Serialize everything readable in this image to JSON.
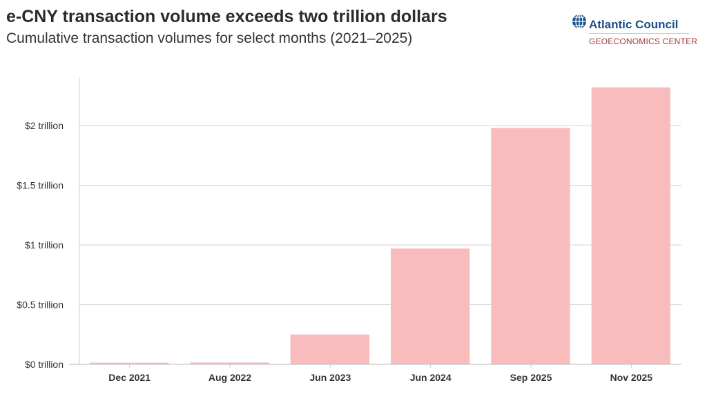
{
  "chart_data": {
    "type": "bar",
    "title": "e-CNY transaction volume exceeds two trillion dollars",
    "subtitle": "Cumulative transaction volumes for select months (2021–2025)",
    "categories": [
      "Dec 2021",
      "Aug 2022",
      "Jun 2023",
      "Jun 2024",
      "Sep 2025",
      "Nov 2025"
    ],
    "values": [
      0.014,
      0.015,
      0.25,
      0.97,
      1.98,
      2.32
    ],
    "unit": "trillion USD",
    "ylim": [
      0,
      2.4
    ],
    "yticks": [
      0,
      0.5,
      1,
      1.5,
      2
    ],
    "ytick_labels": [
      "$0 trillion",
      "$0.5 trillion",
      "$1 trillion",
      "$1.5 trillion",
      "$2 trillion"
    ],
    "xlabel": "",
    "ylabel": "",
    "grid": true,
    "legend": "none",
    "bar_color": "#f9bcbd"
  },
  "logo": {
    "name": "Atlantic Council",
    "sub": "GEOECONOMICS CENTER",
    "icon": "globe-icon"
  }
}
